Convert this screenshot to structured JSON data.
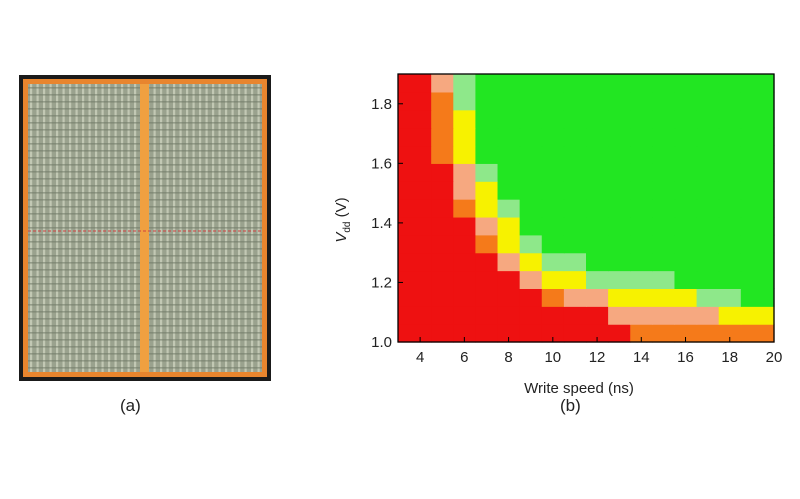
{
  "figure": {
    "caption_a": "(a)",
    "caption_b": "(b)"
  },
  "chip_image": {
    "description_icon": "chip-layout-image",
    "frame_color": "#1a1a1a",
    "border_color": "#e8852e",
    "cell_color": "#9aa28e",
    "stripe_color": "#f0a040",
    "divider_color": "#d04040"
  },
  "chart_data": {
    "type": "heatmap",
    "xlabel": "Write speed (ns)",
    "ylabel_main": "V",
    "ylabel_sub": "dd",
    "ylabel_unit": " (V)",
    "x_ticks": [
      "4",
      "6",
      "8",
      "10",
      "12",
      "14",
      "16",
      "18",
      "20"
    ],
    "x_tick_values": [
      4,
      6,
      8,
      10,
      12,
      14,
      16,
      18,
      20
    ],
    "y_ticks": [
      "1.0",
      "1.2",
      "1.4",
      "1.6",
      "1.8"
    ],
    "y_tick_values": [
      1.0,
      1.2,
      1.4,
      1.6,
      1.8
    ],
    "xlim": [
      3,
      20
    ],
    "ylim": [
      1.0,
      1.9
    ],
    "x_bin_starts_ns": [
      3,
      4.5,
      5.5,
      6.5,
      7.5,
      8.5,
      9.5,
      10.5,
      11.5,
      12.5,
      13.5,
      14.5,
      15.5,
      16.5,
      17.5,
      18.5
    ],
    "x_bin_ends_ns": [
      4.5,
      5.5,
      6.5,
      7.5,
      8.5,
      9.5,
      10.5,
      11.5,
      12.5,
      13.5,
      14.5,
      15.5,
      16.5,
      17.5,
      18.5,
      20
    ],
    "y_bin_low_V": [
      1.0,
      1.06,
      1.12,
      1.18,
      1.24,
      1.3,
      1.36,
      1.42,
      1.48,
      1.54,
      1.6,
      1.66,
      1.72,
      1.78,
      1.84
    ],
    "y_bin_high_V": [
      1.06,
      1.12,
      1.18,
      1.24,
      1.3,
      1.36,
      1.42,
      1.48,
      1.54,
      1.6,
      1.66,
      1.72,
      1.78,
      1.84,
      1.9
    ],
    "color_levels": [
      "#ee1111",
      "#f57a1a",
      "#f6a880",
      "#f7f200",
      "#8ee88a",
      "#22e622"
    ],
    "grid_levels": [
      [
        0,
        0,
        0,
        0,
        0,
        0,
        0,
        0,
        0,
        0,
        1,
        1,
        1,
        1,
        1,
        1
      ],
      [
        0,
        0,
        0,
        0,
        0,
        0,
        0,
        0,
        0,
        2,
        2,
        2,
        2,
        2,
        3,
        3
      ],
      [
        0,
        0,
        0,
        0,
        0,
        0,
        1,
        2,
        2,
        3,
        3,
        3,
        3,
        4,
        4,
        5
      ],
      [
        0,
        0,
        0,
        0,
        0,
        2,
        3,
        3,
        4,
        4,
        4,
        4,
        5,
        5,
        5,
        5
      ],
      [
        0,
        0,
        0,
        0,
        2,
        3,
        4,
        4,
        5,
        5,
        5,
        5,
        5,
        5,
        5,
        5
      ],
      [
        0,
        0,
        0,
        1,
        3,
        4,
        5,
        5,
        5,
        5,
        5,
        5,
        5,
        5,
        5,
        5
      ],
      [
        0,
        0,
        0,
        2,
        3,
        5,
        5,
        5,
        5,
        5,
        5,
        5,
        5,
        5,
        5,
        5
      ],
      [
        0,
        0,
        1,
        3,
        4,
        5,
        5,
        5,
        5,
        5,
        5,
        5,
        5,
        5,
        5,
        5
      ],
      [
        0,
        0,
        2,
        3,
        5,
        5,
        5,
        5,
        5,
        5,
        5,
        5,
        5,
        5,
        5,
        5
      ],
      [
        0,
        0,
        2,
        4,
        5,
        5,
        5,
        5,
        5,
        5,
        5,
        5,
        5,
        5,
        5,
        5
      ],
      [
        0,
        1,
        3,
        5,
        5,
        5,
        5,
        5,
        5,
        5,
        5,
        5,
        5,
        5,
        5,
        5
      ],
      [
        0,
        1,
        3,
        5,
        5,
        5,
        5,
        5,
        5,
        5,
        5,
        5,
        5,
        5,
        5,
        5
      ],
      [
        0,
        1,
        3,
        5,
        5,
        5,
        5,
        5,
        5,
        5,
        5,
        5,
        5,
        5,
        5,
        5
      ],
      [
        0,
        1,
        4,
        5,
        5,
        5,
        5,
        5,
        5,
        5,
        5,
        5,
        5,
        5,
        5,
        5
      ],
      [
        0,
        2,
        4,
        5,
        5,
        5,
        5,
        5,
        5,
        5,
        5,
        5,
        5,
        5,
        5,
        5
      ]
    ]
  }
}
